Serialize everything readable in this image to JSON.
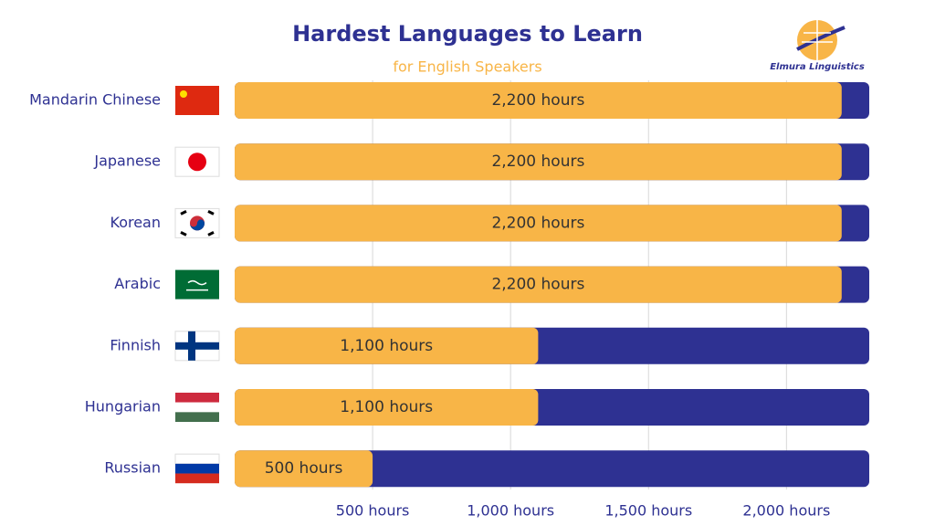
{
  "chart_data": {
    "type": "hbar",
    "title": "Hardest Languages to Learn",
    "subtitle": "for English Speakers",
    "categories": [
      "Mandarin Chinese",
      "Japanese",
      "Korean",
      "Arabic",
      "Finnish",
      "Hungarian",
      "Russian"
    ],
    "values": [
      2200,
      2200,
      2200,
      2200,
      1100,
      1100,
      500
    ],
    "value_labels": [
      "2,200 hours",
      "2,200 hours",
      "2,200 hours",
      "2,200 hours",
      "1,100 hours",
      "1,100 hours",
      "500 hours"
    ],
    "color": "#f8b547",
    "track_color": "#2e3192",
    "xlim": [
      0,
      2300
    ],
    "xticks": [
      {
        "value": 500,
        "label": "500 hours"
      },
      {
        "value": 1000,
        "label": "1,000 hours"
      },
      {
        "value": 1500,
        "label": "1,500 hours"
      },
      {
        "value": 2000,
        "label": "2,000 hours"
      }
    ],
    "grid": true
  },
  "logo": {
    "text": "Elmura Linguistics"
  }
}
